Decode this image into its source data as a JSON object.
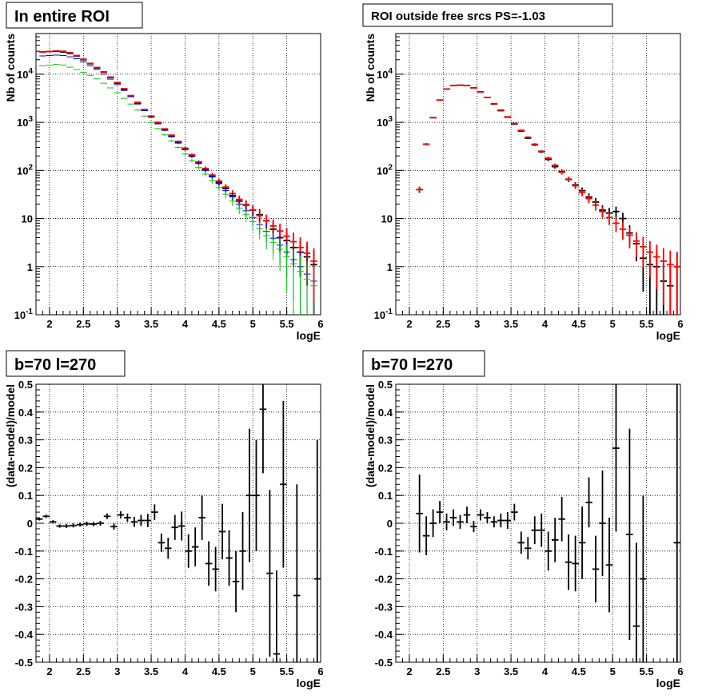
{
  "chart_data": [
    {
      "type": "scatter",
      "title": "In entire ROI",
      "xlabel": "logE",
      "ylabel": "Nb of counts",
      "xlim": [
        1.8,
        6.0
      ],
      "ylim": [
        0.1,
        70000
      ],
      "yscale": "log",
      "grid": true,
      "x_ticks": [
        "2",
        "2.5",
        "3",
        "3.5",
        "4",
        "4.5",
        "5",
        "5.5",
        "6"
      ],
      "y_ticks": [
        "10^{-1}",
        "1",
        "10",
        "10^{2}",
        "10^{3}",
        "10^{4}"
      ],
      "x": [
        1.9,
        2.0,
        2.1,
        2.2,
        2.3,
        2.4,
        2.5,
        2.6,
        2.7,
        2.8,
        2.9,
        3.0,
        3.1,
        3.2,
        3.3,
        3.4,
        3.5,
        3.6,
        3.7,
        3.8,
        3.9,
        4.0,
        4.1,
        4.2,
        4.3,
        4.4,
        4.5,
        4.6,
        4.7,
        4.8,
        4.9,
        5.0,
        5.1,
        5.2,
        5.3,
        5.4,
        5.5,
        5.6,
        5.7,
        5.8,
        5.9
      ],
      "series": [
        {
          "color": "#000000",
          "style": "errorbar",
          "values": [
            29000,
            29500,
            30000,
            29000,
            27000,
            24000,
            20000,
            16500,
            13500,
            11000,
            8500,
            6500,
            4800,
            3500,
            2500,
            1800,
            1300,
            960,
            700,
            520,
            380,
            280,
            200,
            145,
            105,
            77,
            56,
            42,
            30,
            23,
            19,
            15,
            12,
            9,
            6,
            4,
            3.5,
            2.5,
            2,
            1.6,
            1.1
          ],
          "errors": [
            170,
            170,
            175,
            170,
            165,
            155,
            140,
            128,
            116,
            105,
            92,
            80,
            69,
            59,
            50,
            42,
            36,
            31,
            26,
            23,
            19,
            17,
            14,
            12,
            10,
            9,
            7.5,
            6.5,
            5.5,
            4.8,
            4.3,
            3.9,
            3.5,
            3.0,
            2.4,
            2.0,
            1.8,
            1.5,
            1.4,
            1.2,
            1.0
          ]
        },
        {
          "color": "#ff0000",
          "style": "errorbar",
          "values": [
            29000,
            29500,
            30500,
            30000,
            28000,
            24500,
            20500,
            16800,
            13800,
            11200,
            8700,
            6700,
            5000,
            3600,
            2600,
            1850,
            1350,
            1000,
            730,
            540,
            400,
            290,
            210,
            150,
            110,
            80,
            60,
            45,
            33,
            25,
            19.5,
            15,
            11.5,
            9,
            7,
            5.5,
            4.3,
            3.3,
            2.5,
            1.9,
            1.3
          ],
          "errors": [
            170,
            170,
            175,
            173,
            167,
            156,
            143,
            130,
            117,
            106,
            93,
            82,
            71,
            60,
            51,
            43,
            37,
            32,
            27,
            23,
            20,
            17,
            14.5,
            12.2,
            10.5,
            9,
            7.7,
            6.7,
            5.7,
            5,
            4.4,
            3.9,
            3.4,
            3,
            2.6,
            2.3,
            2.1,
            1.8,
            1.6,
            1.4,
            1.1
          ]
        },
        {
          "color": "#0000ff",
          "style": "errorbar",
          "values": [
            24000,
            24500,
            25000,
            24500,
            23000,
            21000,
            18000,
            15000,
            12500,
            10000,
            7900,
            6100,
            4600,
            3400,
            2400,
            1750,
            1280,
            930,
            680,
            500,
            370,
            270,
            195,
            140,
            100,
            73,
            53,
            38,
            28,
            20,
            14.5,
            10.5,
            7.5,
            5.4,
            3.9,
            2.8,
            2.0,
            1.4,
            1.0,
            0.7,
            0.5
          ],
          "errors": [
            155,
            157,
            158,
            157,
            152,
            145,
            134,
            122,
            112,
            100,
            89,
            78,
            68,
            58,
            49,
            42,
            36,
            30,
            26,
            22,
            19,
            16,
            14,
            12,
            10,
            8.5,
            7.3,
            6.2,
            5.3,
            4.5,
            3.8,
            3.2,
            2.7,
            2.3,
            2.0,
            1.7,
            1.4,
            1.2,
            1.0,
            0.85,
            0.7
          ]
        },
        {
          "color": "#00cc00",
          "style": "errorbar",
          "values": [
            15000,
            15500,
            16000,
            15500,
            14000,
            12500,
            11000,
            9500,
            8000,
            6500,
            5200,
            4100,
            3150,
            2400,
            1800,
            1350,
            1000,
            740,
            550,
            410,
            300,
            220,
            160,
            115,
            84,
            61,
            44,
            32,
            23,
            16.5,
            12,
            8.6,
            6.2,
            4.4,
            3.2,
            2.3,
            1.6,
            1.15,
            0.8,
            0.55,
            0.4
          ],
          "errors": [
            122,
            124,
            126,
            124,
            118,
            112,
            105,
            97,
            89,
            81,
            72,
            64,
            56,
            49,
            42,
            37,
            32,
            27,
            23,
            20,
            17,
            15,
            13,
            11,
            9,
            7.8,
            6.6,
            5.7,
            4.8,
            4.1,
            3.5,
            2.9,
            2.5,
            2.1,
            1.8,
            1.5,
            1.3,
            1.07,
            0.9,
            0.74,
            0.63
          ]
        }
      ]
    },
    {
      "type": "scatter",
      "title": "ROI outside free srcs PS=-1.03",
      "xlabel": "logE",
      "ylabel": "Nb of counts",
      "xlim": [
        1.8,
        6.0
      ],
      "ylim": [
        0.1,
        70000
      ],
      "yscale": "log",
      "grid": true,
      "x_ticks": [
        "2",
        "2.5",
        "3",
        "3.5",
        "4",
        "4.5",
        "5",
        "5.5",
        "6"
      ],
      "y_ticks": [
        "10^{-1}",
        "1",
        "10",
        "10^{2}",
        "10^{3}",
        "10^{4}"
      ],
      "x": [
        2.15,
        2.25,
        2.35,
        2.45,
        2.55,
        2.65,
        2.75,
        2.85,
        2.95,
        3.05,
        3.15,
        3.25,
        3.35,
        3.45,
        3.55,
        3.65,
        3.75,
        3.85,
        3.95,
        4.05,
        4.15,
        4.25,
        4.35,
        4.45,
        4.55,
        4.65,
        4.75,
        4.85,
        4.95,
        5.05,
        5.15,
        5.25,
        5.35,
        5.45,
        5.55,
        5.65,
        5.75,
        5.85,
        5.95
      ],
      "series": [
        {
          "color": "#000000",
          "style": "errorbar",
          "values": [
            40,
            350,
            1250,
            2900,
            4900,
            5800,
            5900,
            5800,
            5200,
            4300,
            3300,
            2400,
            1750,
            1280,
            920,
            660,
            470,
            340,
            245,
            170,
            120,
            95,
            65,
            50,
            38,
            28,
            22,
            15,
            13,
            14,
            10,
            5,
            3,
            1.5,
            1.1,
            1.0,
            0.5,
            0.4,
            1.0
          ],
          "errors": [
            6,
            19,
            35,
            54,
            70,
            76,
            77,
            76,
            72,
            66,
            57,
            49,
            42,
            36,
            30,
            26,
            22,
            18,
            16,
            13,
            11,
            9.7,
            8,
            7,
            6.2,
            5.3,
            4.7,
            3.9,
            3.6,
            3.7,
            3.2,
            2.2,
            1.7,
            1.2,
            1.05,
            1.0,
            0.7,
            0.63,
            1.0
          ]
        },
        {
          "color": "#ff0000",
          "style": "errorbar",
          "values": [
            40,
            350,
            1250,
            2900,
            4900,
            5800,
            5900,
            5800,
            5200,
            4300,
            3300,
            2450,
            1800,
            1300,
            950,
            680,
            490,
            350,
            250,
            180,
            128,
            92,
            66,
            48,
            35,
            26,
            19,
            14,
            10.5,
            8,
            6,
            4.5,
            3.4,
            2.6,
            2.0,
            1.6,
            1.3,
            1.1,
            1.0
          ],
          "errors": [
            6,
            19,
            35,
            54,
            70,
            76,
            77,
            76,
            72,
            66,
            57,
            49,
            42,
            36,
            31,
            26,
            22,
            19,
            16,
            13,
            11.3,
            9.6,
            8.1,
            6.9,
            5.9,
            5.1,
            4.4,
            3.7,
            3.2,
            2.8,
            2.4,
            2.1,
            1.8,
            1.6,
            1.4,
            1.26,
            1.14,
            1.05,
            1.0
          ]
        }
      ]
    },
    {
      "type": "scatter",
      "title": "b=70 l=270",
      "xlabel": "logE",
      "ylabel": "(data-model)/model",
      "xlim": [
        1.8,
        6.0
      ],
      "ylim": [
        -0.5,
        0.5
      ],
      "grid": true,
      "x_ticks": [
        "2",
        "2.5",
        "3",
        "3.5",
        "4",
        "4.5",
        "5",
        "5.5",
        "6"
      ],
      "y_ticks": [
        "-0.5",
        "-0.4",
        "-0.3",
        "-0.2",
        "-0.1",
        "0",
        "0.1",
        "0.2",
        "0.3",
        "0.4",
        "0.5"
      ],
      "x": [
        1.85,
        1.95,
        2.05,
        2.15,
        2.25,
        2.35,
        2.45,
        2.55,
        2.65,
        2.75,
        2.85,
        2.95,
        3.05,
        3.15,
        3.25,
        3.35,
        3.45,
        3.55,
        3.65,
        3.75,
        3.85,
        3.95,
        4.05,
        4.15,
        4.25,
        4.35,
        4.45,
        4.55,
        4.65,
        4.75,
        4.85,
        4.95,
        5.05,
        5.15,
        5.25,
        5.35,
        5.45,
        5.65,
        5.95
      ],
      "series": [
        {
          "color": "#000000",
          "style": "errorbar",
          "values": [
            0.015,
            0.025,
            0.005,
            -0.01,
            -0.01,
            -0.008,
            -0.005,
            -0.002,
            -0.003,
            0.0,
            0.025,
            -0.012,
            0.03,
            0.02,
            0.005,
            0.01,
            0.01,
            0.04,
            -0.07,
            -0.09,
            -0.015,
            -0.01,
            -0.1,
            -0.085,
            0.02,
            -0.145,
            -0.165,
            -0.03,
            -0.125,
            -0.21,
            -0.1,
            0.1,
            0.1,
            0.41,
            -0.18,
            -0.47,
            0.14,
            -0.26,
            -0.2
          ],
          "errors": [
            0.005,
            0.006,
            0.006,
            0.006,
            0.007,
            0.007,
            0.007,
            0.008,
            0.008,
            0.009,
            0.01,
            0.011,
            0.013,
            0.015,
            0.018,
            0.02,
            0.024,
            0.028,
            0.033,
            0.038,
            0.045,
            0.052,
            0.06,
            0.07,
            0.08,
            0.08,
            0.08,
            0.1,
            0.1,
            0.11,
            0.14,
            0.24,
            0.2,
            0.23,
            0.3,
            0.3,
            0.3,
            0.4,
            0.5
          ]
        }
      ]
    },
    {
      "type": "scatter",
      "title": "b=70 l=270",
      "xlabel": "logE",
      "ylabel": "(data-model)/model",
      "xlim": [
        1.8,
        6.0
      ],
      "ylim": [
        -0.5,
        0.5
      ],
      "grid": true,
      "x_ticks": [
        "2",
        "2.5",
        "3",
        "3.5",
        "4",
        "4.5",
        "5",
        "5.5",
        "6"
      ],
      "y_ticks": [
        "-0.5",
        "-0.4",
        "-0.3",
        "-0.2",
        "-0.1",
        "0",
        "0.1",
        "0.2",
        "0.3",
        "0.4",
        "0.5"
      ],
      "x": [
        2.15,
        2.25,
        2.35,
        2.45,
        2.55,
        2.65,
        2.75,
        2.85,
        2.95,
        3.05,
        3.15,
        3.25,
        3.35,
        3.45,
        3.55,
        3.65,
        3.75,
        3.85,
        3.95,
        4.05,
        4.15,
        4.25,
        4.35,
        4.45,
        4.55,
        4.65,
        4.75,
        4.85,
        4.95,
        5.05,
        5.25,
        5.35,
        5.45,
        5.95
      ],
      "series": [
        {
          "color": "#000000",
          "style": "errorbar",
          "values": [
            0.035,
            -0.045,
            0.0,
            0.04,
            0.005,
            0.02,
            0.005,
            0.03,
            -0.012,
            0.03,
            0.02,
            0.005,
            0.01,
            0.01,
            0.04,
            -0.07,
            -0.09,
            -0.025,
            -0.025,
            -0.1,
            -0.06,
            0.015,
            -0.14,
            -0.145,
            -0.07,
            0.075,
            -0.165,
            0.0,
            -0.15,
            0.27,
            -0.04,
            -0.37,
            -0.2,
            -0.07
          ],
          "errors": [
            0.14,
            0.07,
            0.05,
            0.04,
            0.03,
            0.03,
            0.025,
            0.03,
            0.02,
            0.02,
            0.02,
            0.02,
            0.025,
            0.03,
            0.03,
            0.04,
            0.04,
            0.05,
            0.06,
            0.07,
            0.08,
            0.08,
            0.1,
            0.1,
            0.13,
            0.09,
            0.12,
            0.19,
            0.17,
            0.3,
            0.38,
            0.3,
            0.3,
            0.6
          ]
        }
      ]
    }
  ]
}
